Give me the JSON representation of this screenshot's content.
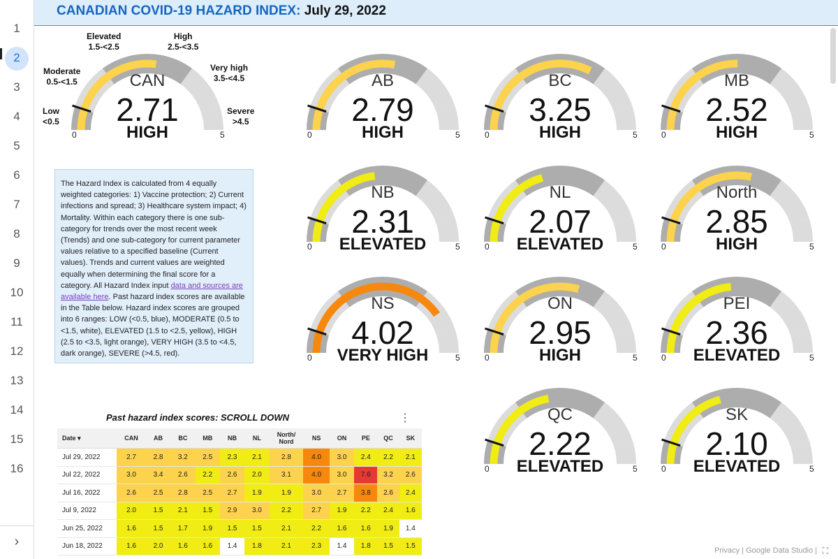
{
  "colors": {
    "low": "#1e88e5",
    "moderate": "#ffffff",
    "elevated": "#f0ec14",
    "high": "#fdd24c",
    "very_high": "#f6880e",
    "severe": "#e53935",
    "track_dark": "#adadad",
    "track_light": "#dcdcdc",
    "needle": "#111111"
  },
  "rail": {
    "pages": [
      "1",
      "2",
      "3",
      "4",
      "5",
      "6",
      "7",
      "8",
      "9",
      "10",
      "11",
      "12",
      "13",
      "14",
      "15",
      "16"
    ],
    "active_page": "2",
    "expand_icon": "chevron-right-icon"
  },
  "header": {
    "title_part1": "CANADIAN COVID-19 HAZARD INDEX:",
    "title_part2": "July 29, 2022"
  },
  "scale_labels": {
    "low": [
      "Low",
      "<0.5"
    ],
    "moderate": [
      "Moderate",
      "0.5-<1.5"
    ],
    "elevated": [
      "Elevated",
      "1.5-<2.5"
    ],
    "high": [
      "High",
      "2.5-<3.5"
    ],
    "very_high": [
      "Very high",
      "3.5-<4.5"
    ],
    "severe": [
      "Severe",
      ">4.5"
    ]
  },
  "gauges": [
    {
      "name": "CAN",
      "value": "2.71",
      "category": "HIGH",
      "level": "high",
      "min": "0",
      "max": "5"
    },
    {
      "name": "AB",
      "value": "2.79",
      "category": "HIGH",
      "level": "high",
      "min": "0",
      "max": "5"
    },
    {
      "name": "BC",
      "value": "3.25",
      "category": "HIGH",
      "level": "high",
      "min": "0",
      "max": "5"
    },
    {
      "name": "MB",
      "value": "2.52",
      "category": "HIGH",
      "level": "high",
      "min": "0",
      "max": "5"
    },
    {
      "name": "NB",
      "value": "2.31",
      "category": "ELEVATED",
      "level": "elevated",
      "min": "0",
      "max": "5"
    },
    {
      "name": "NL",
      "value": "2.07",
      "category": "ELEVATED",
      "level": "elevated",
      "min": "0",
      "max": "5"
    },
    {
      "name": "North",
      "value": "2.85",
      "category": "HIGH",
      "level": "high",
      "min": "0",
      "max": "5"
    },
    {
      "name": "NS",
      "value": "4.02",
      "category": "VERY HIGH",
      "level": "very_high",
      "min": "0",
      "max": "5"
    },
    {
      "name": "ON",
      "value": "2.95",
      "category": "HIGH",
      "level": "high",
      "min": "0",
      "max": "5"
    },
    {
      "name": "PEI",
      "value": "2.36",
      "category": "ELEVATED",
      "level": "elevated",
      "min": "0",
      "max": "5"
    },
    {
      "name": "QC",
      "value": "2.22",
      "category": "ELEVATED",
      "level": "elevated",
      "min": "0",
      "max": "5"
    },
    {
      "name": "SK",
      "value": "2.10",
      "category": "ELEVATED",
      "level": "elevated",
      "min": "0",
      "max": "5"
    }
  ],
  "info": {
    "text_before_link": "The Hazard Index is calculated from 4 equally weighted categories: 1) Vaccine protection; 2) Current infections and spread; 3) Healthcare system impact; 4) Mortality. Within each category there is one sub-category for trends over the most recent week (Trends) and one sub-category for current parameter values relative to a specified baseline (Current values). Trends and current values are weighted equally when determining the final score for a category. All Hazard Index input ",
    "link_text": "data and sources are available here",
    "text_after_link": ". Past hazard index scores are available in the Table below. Hazard index scores are grouped into 6 ranges: LOW (<0.5, blue), MODERATE (0.5 to <1.5, white), ELEVATED (1.5 to <2.5, yellow), HIGH (2.5 to <3.5, light orange), VERY HIGH (3.5 to <4.5, dark orange), SEVERE (>4.5, red)."
  },
  "table": {
    "title": "Past hazard index scores: SCROLL DOWN",
    "menu_icon": "more-vert-icon",
    "sort_icon": "sort-down-icon",
    "columns": [
      "Date",
      "CAN",
      "AB",
      "BC",
      "MB",
      "NB",
      "NL",
      "North/ Nord",
      "NS",
      "ON",
      "PE",
      "QC",
      "SK"
    ],
    "rows": [
      {
        "date": "Jul 29, 2022",
        "values": [
          "2.7",
          "2.8",
          "3.2",
          "2.5",
          "2.3",
          "2.1",
          "2.8",
          "4.0",
          "3.0",
          "2.4",
          "2.2",
          "2.1"
        ]
      },
      {
        "date": "Jul 22, 2022",
        "values": [
          "3.0",
          "3.4",
          "2.6",
          "2.2",
          "2.6",
          "2.0",
          "3.1",
          "4.0",
          "3.0",
          "7.6",
          "3.2",
          "2.6"
        ]
      },
      {
        "date": "Jul 16, 2022",
        "values": [
          "2.6",
          "2.5",
          "2.8",
          "2.5",
          "2.7",
          "1.9",
          "1.9",
          "3.0",
          "2.7",
          "3.8",
          "2.6",
          "2.4"
        ]
      },
      {
        "date": "Jul 9, 2022",
        "values": [
          "2.0",
          "1.5",
          "2.1",
          "1.5",
          "2.9",
          "3.0",
          "2.2",
          "2.7",
          "1.9",
          "2.2",
          "2.4",
          "1.6"
        ]
      },
      {
        "date": "Jun 25, 2022",
        "values": [
          "1.6",
          "1.5",
          "1.7",
          "1.9",
          "1.5",
          "1.5",
          "2.1",
          "2.2",
          "1.6",
          "1.6",
          "1.9",
          "1.4"
        ]
      },
      {
        "date": "Jun 18, 2022",
        "values": [
          "1.6",
          "2.0",
          "1.6",
          "1.6",
          "1.4",
          "1.8",
          "2.1",
          "2.3",
          "1.4",
          "1.8",
          "1.5",
          "1.5"
        ]
      }
    ]
  },
  "footer": {
    "privacy": "Privacy",
    "separator": "|",
    "studio": "Google Data Studio",
    "separator2": "|",
    "expand_icon": "fullscreen-icon"
  }
}
